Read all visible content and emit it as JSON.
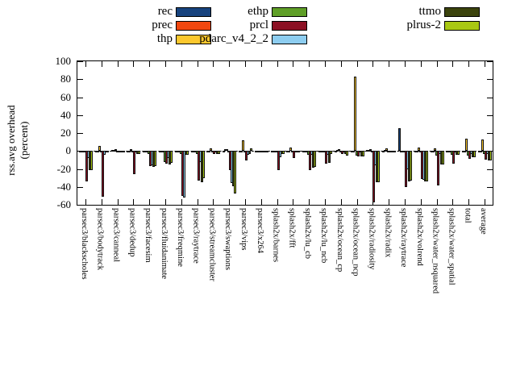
{
  "chart_data": {
    "type": "bar",
    "title": "",
    "ylabel_lines": [
      "rss.avg overhead",
      "(percent)"
    ],
    "ylim": [
      -60,
      100
    ],
    "yticks": [
      100,
      80,
      60,
      40,
      20,
      0,
      -20,
      -40,
      -60
    ],
    "grid": false,
    "zero_line": "dashed",
    "legend_position": "top-center-three-columns",
    "axis_color": "#000000",
    "background_color": "#ffffff",
    "categories": [
      "parsec3/blackscholes",
      "parsec3/bodytrack",
      "parsec3/canneal",
      "parsec3/dedup",
      "parsec3/facesim",
      "parsec3/fluidanimate",
      "parsec3/freqmine",
      "parsec3/raytrace",
      "parsec3/streamcluster",
      "parsec3/swaptions",
      "parsec3/vips",
      "parsec3/x264",
      "splash2x/barnes",
      "splash2x/fft",
      "splash2x/lu_cb",
      "splash2x/lu_ncb",
      "splash2x/ocean_cp",
      "splash2x/ocean_ncp",
      "splash2x/radiosity",
      "splash2x/radix",
      "splash2x/raytrace",
      "splash2x/volrend",
      "splash2x/water_nsquared",
      "splash2x/water_spatial",
      "total",
      "average"
    ],
    "series": [
      {
        "name": "rec",
        "color": "#17437e",
        "values": [
          -1,
          -1,
          0,
          -1,
          -2,
          -2,
          -2,
          -1,
          -1,
          -1,
          -1,
          -1,
          -1,
          -1,
          -1,
          -1,
          -1,
          -1,
          1,
          -1,
          25,
          -1,
          -1,
          -1,
          -1,
          -1
        ]
      },
      {
        "name": "prec",
        "color": "#f1470f",
        "values": [
          -2,
          -1,
          0,
          -1,
          -2,
          -2,
          -2,
          -2,
          -1,
          2,
          -1,
          -1,
          -1,
          -1,
          -1,
          -1,
          1,
          -1,
          1,
          1,
          -1,
          -1,
          -1,
          -1,
          -1,
          -1
        ]
      },
      {
        "name": "thp",
        "color": "#fcc82e",
        "values": [
          -2,
          6,
          2,
          2,
          -2,
          -2,
          -2,
          -2,
          3,
          2,
          12,
          -1,
          -1,
          4,
          -1,
          -1,
          2,
          83,
          2,
          3,
          -1,
          4,
          3,
          -1,
          14,
          13
        ]
      },
      {
        "name": "ethp",
        "color": "#5f9f27",
        "values": [
          -2,
          -1,
          -1,
          -2,
          -3,
          -12,
          -3,
          -3,
          -2,
          -2,
          -2,
          -1,
          -2,
          -2,
          -4,
          -2,
          -2,
          -5,
          -2,
          -1,
          -2,
          -2,
          -5,
          -4,
          -5,
          -3
        ]
      },
      {
        "name": "prcl",
        "color": "#8c1023",
        "values": [
          -34,
          -51,
          -2,
          -26,
          -17,
          -14,
          -50,
          -33,
          -3,
          -21,
          -11,
          -2,
          -21,
          -8,
          -21,
          -14,
          -3,
          -6,
          -57,
          -2,
          -40,
          -31,
          -38,
          -14,
          -9,
          -10
        ]
      },
      {
        "name": "pdarc_v4_2_2",
        "color": "#8dcdf0",
        "values": [
          -8,
          -4,
          -1,
          -2,
          -16,
          -8,
          -52,
          -12,
          -2,
          -36,
          -4,
          -2,
          -7,
          -2,
          -4,
          -4,
          -2,
          -2,
          -16,
          -1,
          -20,
          -32,
          -3,
          -2,
          -3,
          -3
        ]
      },
      {
        "name": "ttmo",
        "color": "#3b430d",
        "values": [
          -21,
          -1,
          -2,
          -3,
          -18,
          -15,
          -4,
          -35,
          -3,
          -39,
          -3,
          -2,
          -3,
          -2,
          -19,
          -13,
          -3,
          -6,
          -35,
          -2,
          -34,
          -34,
          -15,
          -4,
          -7,
          -11
        ]
      },
      {
        "name": "plrus-2",
        "color": "#a9c813",
        "values": [
          -21,
          -1,
          -2,
          -3,
          -17,
          -13,
          -4,
          -30,
          -3,
          -47,
          3,
          -2,
          -3,
          -2,
          -18,
          -3,
          -5,
          -6,
          -35,
          -2,
          -33,
          -34,
          -15,
          -4,
          -7,
          -11
        ]
      }
    ],
    "legend_columns": [
      [
        "rec",
        "prec",
        "thp"
      ],
      [
        "ethp",
        "prcl",
        "pdarc_v4_2_2"
      ],
      [
        "ttmo",
        "plrus-2"
      ]
    ]
  }
}
